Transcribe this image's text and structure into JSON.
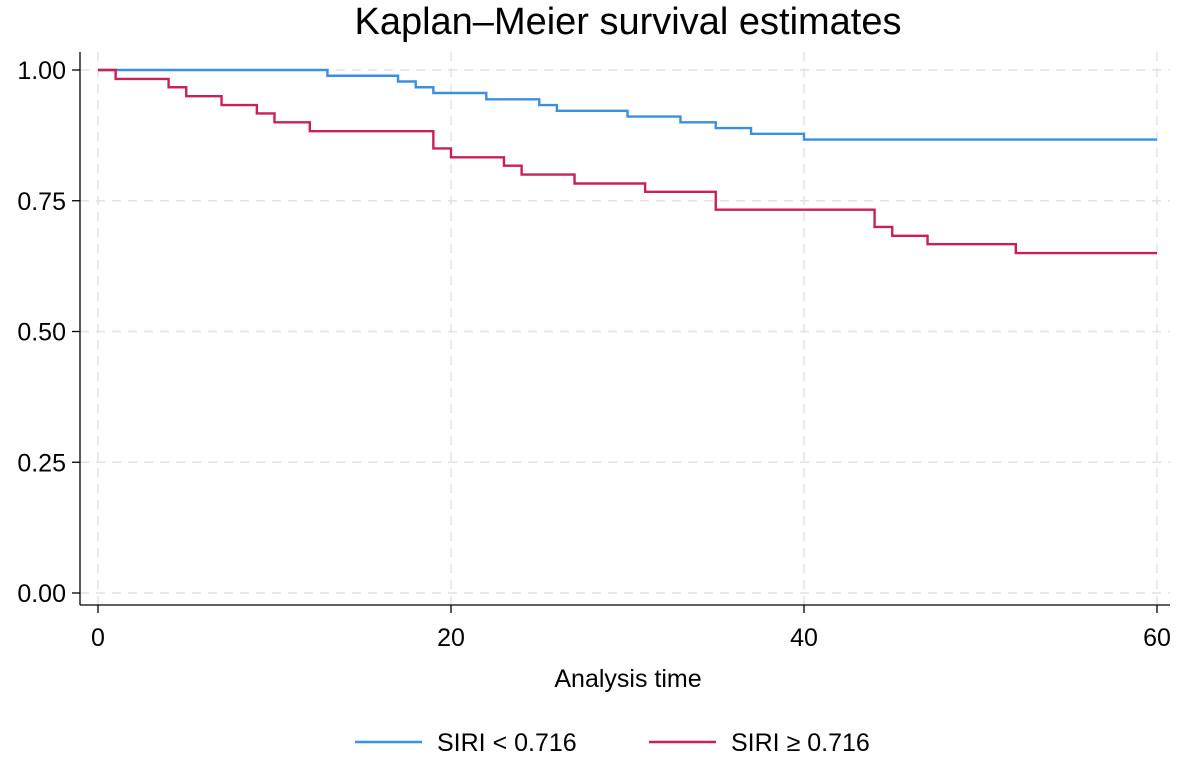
{
  "chart_data": {
    "type": "line",
    "step": true,
    "title": "Kaplan–Meier survival estimates",
    "xlabel": "Analysis time",
    "ylabel": "",
    "xlim": [
      0,
      60
    ],
    "ylim": [
      0,
      1
    ],
    "x_ticks": [
      0,
      20,
      40,
      60
    ],
    "x_tick_labels": [
      "0",
      "20",
      "40",
      "60"
    ],
    "y_ticks": [
      0,
      0.25,
      0.5,
      0.75,
      1
    ],
    "y_tick_labels": [
      "0.00",
      "0.25",
      "0.50",
      "0.75",
      "1.00"
    ],
    "grid": true,
    "legend_position": "bottom",
    "series": [
      {
        "name": "SIRI < 0.716",
        "color": "#3a8fe0",
        "x": [
          0,
          13,
          17,
          18,
          19,
          22,
          25,
          26,
          30,
          33,
          35,
          37,
          40,
          60
        ],
        "y": [
          1.0,
          0.989,
          0.978,
          0.967,
          0.956,
          0.944,
          0.933,
          0.922,
          0.911,
          0.9,
          0.889,
          0.878,
          0.867,
          0.867
        ]
      },
      {
        "name": "SIRI ≥ 0.716",
        "color": "#c8215a",
        "x": [
          0,
          1,
          4,
          5,
          7,
          9,
          10,
          12,
          19,
          20,
          23,
          24,
          27,
          31,
          35,
          44,
          45,
          47,
          52,
          60
        ],
        "y": [
          1.0,
          0.983,
          0.967,
          0.95,
          0.933,
          0.917,
          0.9,
          0.883,
          0.85,
          0.833,
          0.817,
          0.8,
          0.783,
          0.767,
          0.733,
          0.7,
          0.683,
          0.667,
          0.65,
          0.65
        ]
      }
    ]
  }
}
